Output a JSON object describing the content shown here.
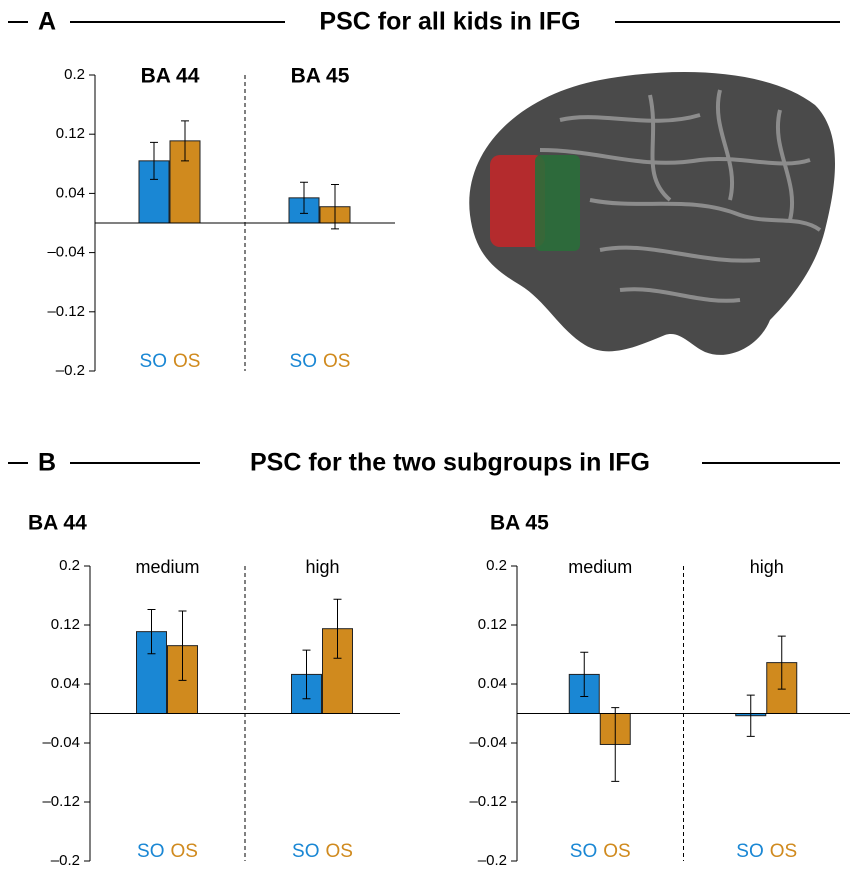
{
  "chart_data": [
    {
      "type": "bar",
      "panel_label": "A",
      "title": "PSC for all kids in IFG",
      "categories": [
        "BA 44",
        "BA 45"
      ],
      "series": [
        {
          "name": "SO",
          "color": "#1a87d4",
          "values": [
            0.084,
            0.034
          ],
          "errors": [
            0.025,
            0.021
          ]
        },
        {
          "name": "OS",
          "color": "#d08a1e",
          "values": [
            0.111,
            0.022
          ],
          "errors": [
            0.027,
            0.03
          ]
        }
      ],
      "ylim": [
        -0.2,
        0.2
      ],
      "yticks": [
        {
          "value": -0.2,
          "label": "–0.2"
        },
        {
          "value": -0.12,
          "label": "–0.12"
        },
        {
          "value": -0.04,
          "label": "–0.04"
        },
        0.04,
        0.12,
        0.2
      ]
    },
    {
      "type": "bar",
      "panel_label": "B",
      "title": "PSC for the two subgroups in IFG",
      "subtitle": "BA 44",
      "categories": [
        "medium",
        "high"
      ],
      "series": [
        {
          "name": "SO",
          "color": "#1a87d4",
          "values": [
            0.111,
            0.053
          ],
          "errors": [
            0.03,
            0.033
          ]
        },
        {
          "name": "OS",
          "color": "#d08a1e",
          "values": [
            0.092,
            0.115
          ],
          "errors": [
            0.047,
            0.04
          ]
        }
      ],
      "ylim": [
        -0.2,
        0.2
      ],
      "yticks": [
        {
          "value": -0.2,
          "label": "–0.2"
        },
        {
          "value": -0.12,
          "label": "–0.12"
        },
        {
          "value": -0.04,
          "label": "–0.04"
        },
        0.04,
        0.12,
        0.2
      ]
    },
    {
      "type": "bar",
      "subtitle": "BA 45",
      "categories": [
        "medium",
        "high"
      ],
      "series": [
        {
          "name": "SO",
          "color": "#1a87d4",
          "values": [
            0.053,
            -0.003
          ],
          "errors": [
            0.03,
            0.028
          ]
        },
        {
          "name": "OS",
          "color": "#d08a1e",
          "values": [
            -0.042,
            0.069
          ],
          "errors": [
            0.05,
            0.036
          ]
        }
      ],
      "ylim": [
        -0.2,
        0.2
      ],
      "yticks": [
        {
          "value": -0.2,
          "label": "–0.2"
        },
        {
          "value": -0.12,
          "label": "–0.12"
        },
        {
          "value": -0.04,
          "label": "–0.04"
        },
        0.04,
        0.12,
        0.2
      ]
    }
  ]
}
